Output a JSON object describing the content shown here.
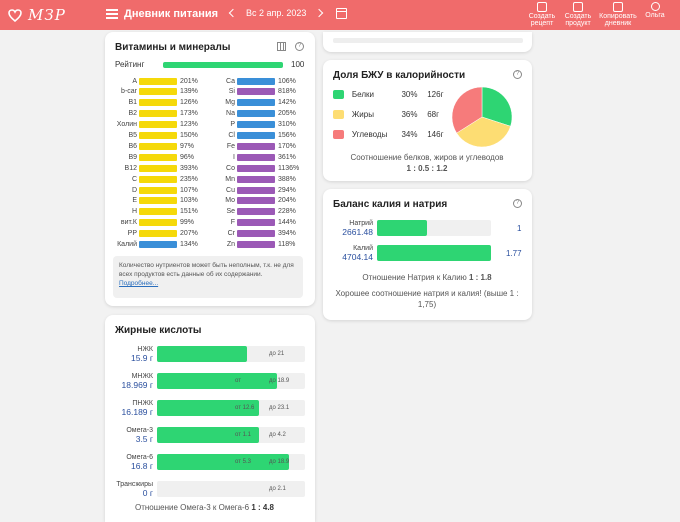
{
  "header": {
    "logo_text": "МЗР",
    "menu_title": "Дневник питания",
    "date": "Вс 2 апр. 2023",
    "actions": [
      {
        "l1": "Создать",
        "l2": "рецепт"
      },
      {
        "l1": "Создать",
        "l2": "продукт"
      },
      {
        "l1": "Копировать",
        "l2": "дневник"
      },
      {
        "l1": "Ольга",
        "l2": ""
      }
    ]
  },
  "colors": {
    "accent": "#f06b6b",
    "green": "#2ed573",
    "yellow": "#f5d90a",
    "blue": "#3a8fd8",
    "purple": "#9b59b6"
  },
  "vitamins": {
    "title": "Витамины и минералы",
    "rating_label": "Рейтинг",
    "rating_value": "100",
    "left": [
      {
        "name": "A",
        "val": "201%",
        "color": "#f5d90a"
      },
      {
        "name": "b-car",
        "val": "139%",
        "color": "#f5d90a"
      },
      {
        "name": "B1",
        "val": "126%",
        "color": "#f5d90a"
      },
      {
        "name": "B2",
        "val": "173%",
        "color": "#f5d90a"
      },
      {
        "name": "Холин",
        "val": "123%",
        "color": "#f5d90a"
      },
      {
        "name": "B5",
        "val": "150%",
        "color": "#f5d90a"
      },
      {
        "name": "B6",
        "val": "97%",
        "color": "#f5d90a"
      },
      {
        "name": "B9",
        "val": "96%",
        "color": "#f5d90a"
      },
      {
        "name": "B12",
        "val": "393%",
        "color": "#f5d90a"
      },
      {
        "name": "C",
        "val": "235%",
        "color": "#f5d90a"
      },
      {
        "name": "D",
        "val": "107%",
        "color": "#f5d90a"
      },
      {
        "name": "E",
        "val": "103%",
        "color": "#f5d90a"
      },
      {
        "name": "H",
        "val": "151%",
        "color": "#f5d90a"
      },
      {
        "name": "вит.К",
        "val": "99%",
        "color": "#f5d90a"
      },
      {
        "name": "PP",
        "val": "207%",
        "color": "#f5d90a"
      },
      {
        "name": "Калий",
        "val": "134%",
        "color": "#3a8fd8"
      }
    ],
    "right": [
      {
        "name": "Ca",
        "val": "106%",
        "color": "#3a8fd8"
      },
      {
        "name": "Si",
        "val": "818%",
        "color": "#9b59b6"
      },
      {
        "name": "Mg",
        "val": "142%",
        "color": "#3a8fd8"
      },
      {
        "name": "Na",
        "val": "205%",
        "color": "#3a8fd8"
      },
      {
        "name": "P",
        "val": "310%",
        "color": "#3a8fd8"
      },
      {
        "name": "Cl",
        "val": "156%",
        "color": "#3a8fd8"
      },
      {
        "name": "Fe",
        "val": "170%",
        "color": "#9b59b6"
      },
      {
        "name": "I",
        "val": "361%",
        "color": "#9b59b6"
      },
      {
        "name": "Co",
        "val": "1136%",
        "color": "#9b59b6"
      },
      {
        "name": "Mn",
        "val": "388%",
        "color": "#9b59b6"
      },
      {
        "name": "Cu",
        "val": "294%",
        "color": "#9b59b6"
      },
      {
        "name": "Mo",
        "val": "204%",
        "color": "#9b59b6"
      },
      {
        "name": "Se",
        "val": "228%",
        "color": "#9b59b6"
      },
      {
        "name": "F",
        "val": "144%",
        "color": "#9b59b6"
      },
      {
        "name": "Cr",
        "val": "394%",
        "color": "#9b59b6"
      },
      {
        "name": "Zn",
        "val": "118%",
        "color": "#9b59b6"
      }
    ],
    "note": "Количество нутриентов может быть неполным, т.к. не для всех продуктов есть данные об их содержании.",
    "note_link": "Подробнее..."
  },
  "fatty": {
    "title": "Жирные кислоты",
    "rows": [
      {
        "name": "НЖК",
        "amount": "15.9 г",
        "fill": 0.61,
        "marks": "до 21",
        "min": ""
      },
      {
        "name": "МНЖК",
        "amount": "18.969 г",
        "fill": 0.81,
        "marks": "до 18.9",
        "min": "от"
      },
      {
        "name": "ПНЖК",
        "amount": "16.189 г",
        "fill": 0.69,
        "marks": "до 23.1",
        "min": "от 12.6"
      },
      {
        "name": "Омега-3",
        "amount": "3.5 г",
        "fill": 0.69,
        "marks": "до 4.2",
        "min": "от 1.1"
      },
      {
        "name": "Омега-6",
        "amount": "16.8 г",
        "fill": 0.89,
        "marks": "до 18.9",
        "min": "от 5.3"
      },
      {
        "name": "Трансжиры",
        "amount": "0 г",
        "fill": 0,
        "marks": "до 2.1",
        "min": ""
      }
    ],
    "ratio_text": "Отношение Омега-3 к Омега-6",
    "ratio_value": "1 : 4.8"
  },
  "bju": {
    "title": "Доля БЖУ в калорийности",
    "items": [
      {
        "name": "Белки",
        "pct": "30%",
        "grams": "126г",
        "color": "#2ed573",
        "share": 30
      },
      {
        "name": "Жиры",
        "pct": "36%",
        "grams": "68г",
        "color": "#fddd73",
        "share": 36
      },
      {
        "name": "Углеводы",
        "pct": "34%",
        "grams": "146г",
        "color": "#f67b7b",
        "share": 34
      }
    ],
    "ratio_text": "Соотношение белков, жиров и углеводов",
    "ratio_value": "1 : 0.5 : 1.2"
  },
  "balance": {
    "title": "Баланс калия и натрия",
    "rows": [
      {
        "name": "Натрий",
        "amount": "2661.48",
        "fill": 0.44,
        "ratio": "1"
      },
      {
        "name": "Калий",
        "amount": "4704.14",
        "fill": 1.0,
        "ratio": "1.77"
      }
    ],
    "ratio_text": "Отношение Натрия к Калию",
    "ratio_value": "1 : 1.8",
    "conclusion": "Хорошее соотношение натрия и калия! (выше 1 : 1,75)"
  }
}
